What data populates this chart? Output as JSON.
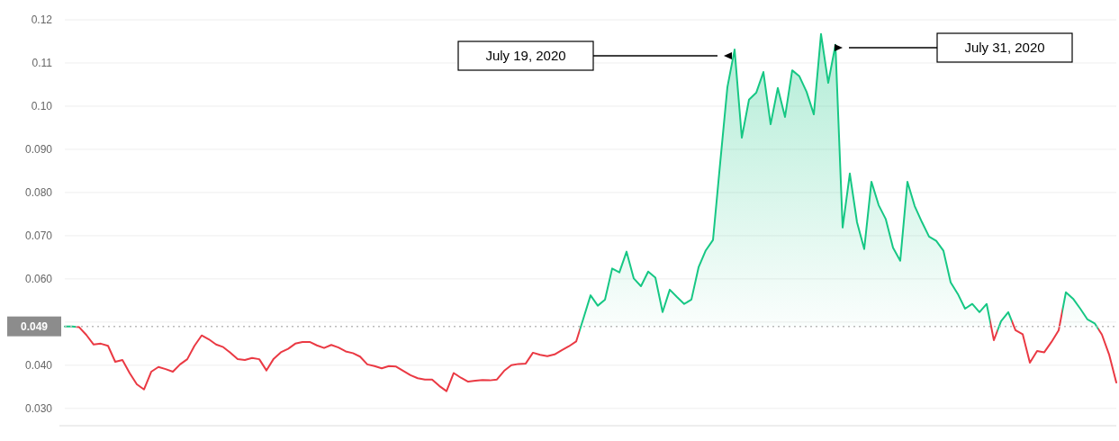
{
  "chart_data": {
    "type": "area",
    "categories": [
      null,
      null,
      null,
      null,
      null,
      null,
      null,
      null,
      null,
      null,
      null,
      null,
      null,
      null,
      null,
      null,
      null,
      null,
      null,
      null,
      null,
      null,
      null,
      null,
      null,
      null,
      null,
      null,
      null,
      null,
      null,
      null,
      null,
      null,
      null,
      null,
      null,
      null,
      null,
      null,
      null,
      null,
      null,
      null,
      null,
      null,
      null,
      null,
      null,
      null,
      null,
      null,
      null,
      null,
      null,
      null,
      null,
      null,
      null,
      null,
      null,
      null,
      null,
      null,
      null,
      null,
      null,
      null,
      null,
      null,
      null,
      null,
      null,
      null,
      null,
      null,
      null,
      null,
      null,
      null,
      null,
      null,
      null,
      null,
      null,
      null,
      null,
      null,
      null,
      null,
      null,
      null,
      null,
      null,
      null,
      null,
      null,
      null,
      null,
      null,
      null,
      null,
      null,
      null,
      null,
      null,
      null,
      null,
      null,
      null,
      null,
      null,
      null,
      null,
      null,
      null,
      null,
      null,
      null,
      null,
      null,
      null,
      null,
      null,
      null,
      null,
      null,
      null,
      null,
      null,
      null,
      null,
      null,
      null,
      null,
      null,
      null,
      null,
      null,
      null,
      null,
      null,
      null,
      null,
      null,
      null,
      null
    ],
    "series": [
      {
        "values": [
          0.049,
          0.049,
          0.0488,
          0.047,
          0.0448,
          0.045,
          0.0445,
          0.0408,
          0.0412,
          0.0382,
          0.0356,
          0.0344,
          0.0385,
          0.0396,
          0.0391,
          0.0385,
          0.0402,
          0.0414,
          0.0445,
          0.0469,
          0.046,
          0.0448,
          0.0442,
          0.0429,
          0.0414,
          0.0412,
          0.0417,
          0.0414,
          0.0388,
          0.0415,
          0.043,
          0.0438,
          0.045,
          0.0454,
          0.0454,
          0.0446,
          0.044,
          0.0447,
          0.0441,
          0.0432,
          0.0428,
          0.042,
          0.0402,
          0.0398,
          0.0393,
          0.0398,
          0.0397,
          0.0387,
          0.0377,
          0.037,
          0.0367,
          0.0367,
          0.0352,
          0.034,
          0.0382,
          0.0371,
          0.0362,
          0.0364,
          0.0366,
          0.0365,
          0.0367,
          0.0387,
          0.04,
          0.0403,
          0.0404,
          0.0429,
          0.0424,
          0.0421,
          0.0425,
          0.0435,
          0.0444,
          0.0455,
          0.0508,
          0.0562,
          0.0538,
          0.0552,
          0.0624,
          0.0615,
          0.0663,
          0.0601,
          0.0583,
          0.0617,
          0.0603,
          0.0523,
          0.0575,
          0.0558,
          0.0542,
          0.0552,
          0.0627,
          0.0666,
          0.069,
          0.0869,
          0.1044,
          0.1131,
          0.0927,
          0.1015,
          0.1031,
          0.1079,
          0.0958,
          0.1042,
          0.0975,
          0.1083,
          0.1069,
          0.1033,
          0.0981,
          0.1167,
          0.1054,
          0.1142,
          0.0719,
          0.0844,
          0.0731,
          0.0669,
          0.0825,
          0.0771,
          0.0738,
          0.0672,
          0.0642,
          0.0825,
          0.0769,
          0.0732,
          0.0698,
          0.0688,
          0.0665,
          0.0592,
          0.0565,
          0.0531,
          0.0542,
          0.0523,
          0.0542,
          0.0458,
          0.0502,
          0.0523,
          0.0481,
          0.0472,
          0.0406,
          0.0433,
          0.043,
          0.0454,
          0.0481,
          0.0569,
          0.0554,
          0.0531,
          0.0506,
          0.0497,
          0.0471,
          0.0425,
          0.036
        ],
        "colors": [
          "#16c784",
          "#16c784",
          "#ea3943",
          "#ea3943",
          "#ea3943",
          "#ea3943",
          "#ea3943",
          "#ea3943",
          "#ea3943",
          "#ea3943",
          "#ea3943",
          "#ea3943",
          "#ea3943",
          "#ea3943",
          "#ea3943",
          "#ea3943",
          "#ea3943",
          "#ea3943",
          "#ea3943",
          "#ea3943",
          "#ea3943",
          "#ea3943",
          "#ea3943",
          "#ea3943",
          "#ea3943",
          "#ea3943",
          "#ea3943",
          "#ea3943",
          "#ea3943",
          "#ea3943",
          "#ea3943",
          "#ea3943",
          "#ea3943",
          "#ea3943",
          "#ea3943",
          "#ea3943",
          "#ea3943",
          "#ea3943",
          "#ea3943",
          "#ea3943",
          "#ea3943",
          "#ea3943",
          "#ea3943",
          "#ea3943",
          "#ea3943",
          "#ea3943",
          "#ea3943",
          "#ea3943",
          "#ea3943",
          "#ea3943",
          "#ea3943",
          "#ea3943",
          "#ea3943",
          "#ea3943",
          "#ea3943",
          "#ea3943",
          "#ea3943",
          "#ea3943",
          "#ea3943",
          "#ea3943",
          "#ea3943",
          "#ea3943",
          "#ea3943",
          "#ea3943",
          "#ea3943",
          "#ea3943",
          "#ea3943",
          "#ea3943",
          "#ea3943",
          "#ea3943",
          "#ea3943",
          "#ea3943",
          "#16c784",
          "#16c784",
          "#16c784",
          "#16c784",
          "#16c784",
          "#16c784",
          "#16c784",
          "#16c784",
          "#16c784",
          "#16c784",
          "#16c784",
          "#16c784",
          "#16c784",
          "#16c784",
          "#16c784",
          "#16c784",
          "#16c784",
          "#16c784",
          "#16c784",
          "#16c784",
          "#16c784",
          "#16c784",
          "#16c784",
          "#16c784",
          "#16c784",
          "#16c784",
          "#16c784",
          "#16c784",
          "#16c784",
          "#16c784",
          "#16c784",
          "#16c784",
          "#16c784",
          "#16c784",
          "#16c784",
          "#16c784",
          "#16c784",
          "#16c784",
          "#16c784",
          "#16c784",
          "#16c784",
          "#16c784",
          "#16c784",
          "#16c784",
          "#16c784",
          "#16c784",
          "#16c784",
          "#16c784",
          "#16c784",
          "#16c784",
          "#16c784",
          "#16c784",
          "#16c784",
          "#16c784",
          "#16c784",
          "#16c784",
          "#16c784",
          "#ea3943",
          "#16c784",
          "#16c784",
          "#ea3943",
          "#ea3943",
          "#ea3943",
          "#ea3943",
          "#ea3943",
          "#ea3943",
          "#ea3943",
          "#16c784",
          "#16c784",
          "#16c784",
          "#16c784",
          "#16c784",
          "#ea3943",
          "#ea3943",
          "#ea3943"
        ]
      }
    ],
    "ylim": [
      0.026,
      0.12
    ],
    "yticks": [
      {
        "value": 0.03,
        "label": "0.030"
      },
      {
        "value": 0.04,
        "label": "0.040"
      },
      {
        "value": 0.05,
        "label": null
      },
      {
        "value": 0.06,
        "label": "0.060"
      },
      {
        "value": 0.07,
        "label": "0.070"
      },
      {
        "value": 0.08,
        "label": "0.080"
      },
      {
        "value": 0.09,
        "label": "0.090"
      },
      {
        "value": 0.1,
        "label": "0.10"
      },
      {
        "value": 0.11,
        "label": "0.11"
      },
      {
        "value": 0.12,
        "label": "0.12"
      }
    ],
    "ref_lines": [
      {
        "axis": "y",
        "value": 0.049,
        "label": "0.049",
        "color": "#bbbbbb",
        "line_style": "dotted"
      }
    ],
    "annotations": [
      "July 19, 2020",
      "July 31, 2020"
    ],
    "grid": "y",
    "tick_labels": "y"
  }
}
